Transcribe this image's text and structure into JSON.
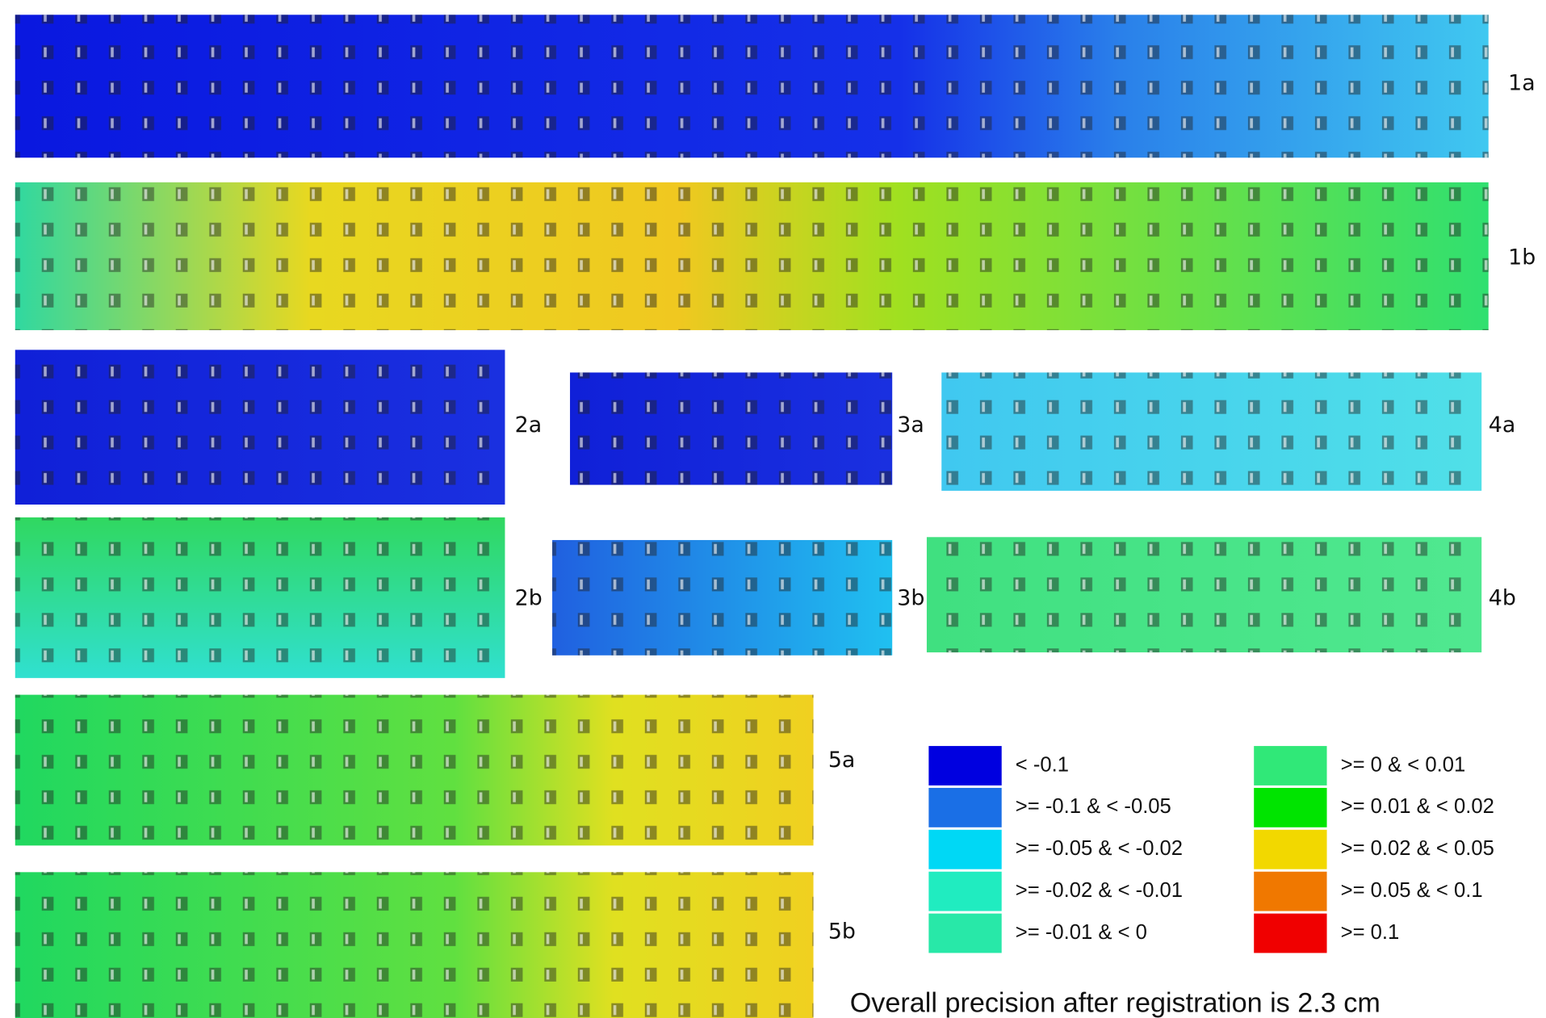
{
  "panels": [
    {
      "label": "1a"
    },
    {
      "label": "1b"
    },
    {
      "label": "2a"
    },
    {
      "label": "3a"
    },
    {
      "label": "4a"
    },
    {
      "label": "2b"
    },
    {
      "label": "3b"
    },
    {
      "label": "4b"
    },
    {
      "label": "5a"
    },
    {
      "label": "5b"
    }
  ],
  "legend": [
    {
      "label": "< -0.1",
      "color": "#0000e0"
    },
    {
      "label": ">= -0.1 & < -0.05",
      "color": "#1a6fe6"
    },
    {
      "label": ">= -0.05 & < -0.02",
      "color": "#00d8f5"
    },
    {
      "label": ">= -0.02 & < -0.01",
      "color": "#20ecc0"
    },
    {
      "label": ">= -0.01 & < 0",
      "color": "#28e8a8"
    },
    {
      "label": ">= 0 & < 0.01",
      "color": "#30e878"
    },
    {
      "label": ">= 0.01 & < 0.02",
      "color": "#00e400"
    },
    {
      "label": ">= 0.02 & < 0.05",
      "color": "#f2d800"
    },
    {
      "label": ">= 0.05 & < 0.1",
      "color": "#f07800"
    },
    {
      "label": ">= 0.1",
      "color": "#f00000"
    }
  ],
  "caption": "Overall precision after registration is 2.3 cm"
}
